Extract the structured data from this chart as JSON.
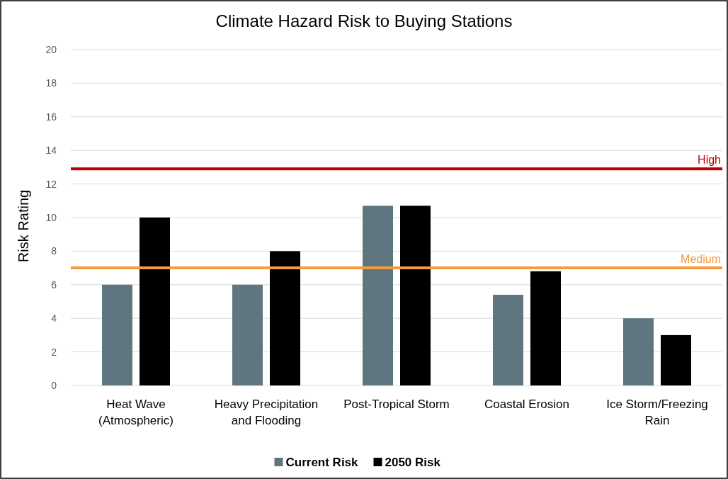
{
  "chart_data": {
    "type": "bar",
    "title": "Climate Hazard Risk to Buying Stations",
    "ylabel": "Risk Rating",
    "categories": [
      "Heat Wave (Atmospheric)",
      "Heavy Precipitation and Flooding",
      "Post-Tropical Storm",
      "Coastal Erosion",
      "Ice Storm/Freezing Rain"
    ],
    "series": [
      {
        "name": "Current Risk",
        "color": "#5f7580",
        "values": [
          6,
          6,
          10.7,
          5.4,
          4
        ]
      },
      {
        "name": "2050 Risk",
        "color": "#000000",
        "values": [
          10,
          8,
          10.7,
          6.8,
          3
        ]
      }
    ],
    "ylim": [
      0,
      20
    ],
    "yticks": [
      0,
      2,
      4,
      6,
      8,
      10,
      12,
      14,
      16,
      18,
      20
    ],
    "grid": "y",
    "legend": "bottom",
    "ref_lines": [
      {
        "axis": "y",
        "value": 12.9,
        "label": "High",
        "color": "#c00000"
      },
      {
        "axis": "y",
        "value": 7,
        "label": "Medium",
        "color": "#f79a3b"
      }
    ]
  }
}
